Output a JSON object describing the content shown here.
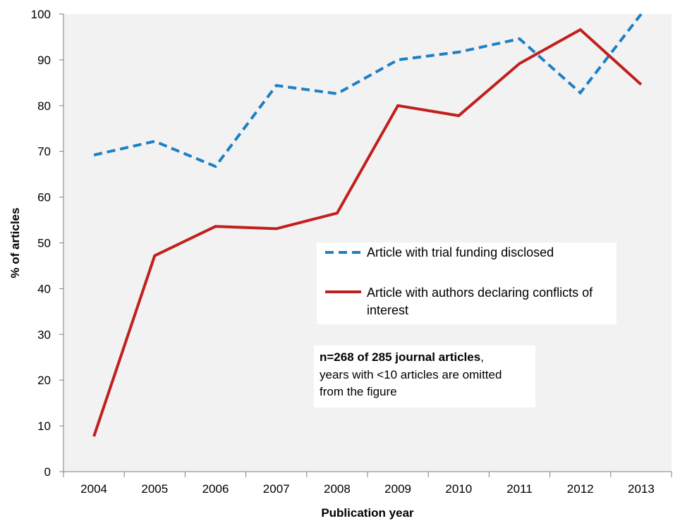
{
  "chart_data": {
    "type": "line",
    "xlabel": "Publication year",
    "ylabel": "% of articles",
    "categories": [
      "2004",
      "2005",
      "2006",
      "2007",
      "2008",
      "2009",
      "2010",
      "2011",
      "2012",
      "2013"
    ],
    "ylim": [
      0,
      100
    ],
    "yticks": [
      "0",
      "10",
      "20",
      "30",
      "40",
      "50",
      "60",
      "70",
      "80",
      "90",
      "100"
    ],
    "grid": false,
    "series": [
      {
        "name": "Article with trial funding disclosed",
        "color": "#1f7fc4",
        "style": "dashed",
        "values": [
          69.2,
          72.2,
          66.7,
          84.4,
          82.6,
          90.0,
          91.7,
          94.6,
          82.8,
          100.0
        ]
      },
      {
        "name": "Article with authors declaring conflicts of interest",
        "legend_lines": [
          "Article with authors declaring conflicts of",
          "interest"
        ],
        "color": "#c0201e",
        "style": "solid",
        "values": [
          7.7,
          47.2,
          53.6,
          53.1,
          56.5,
          80.0,
          77.8,
          89.2,
          96.6,
          84.6
        ]
      }
    ],
    "legend_position": "middle-right",
    "annotation": {
      "bold": "n=268 of 285 journal articles",
      "rest_first_line": ",",
      "line2": "years with <10 articles are omitted",
      "line3": "from the figure"
    },
    "plot_background": "#f2f2f2"
  }
}
